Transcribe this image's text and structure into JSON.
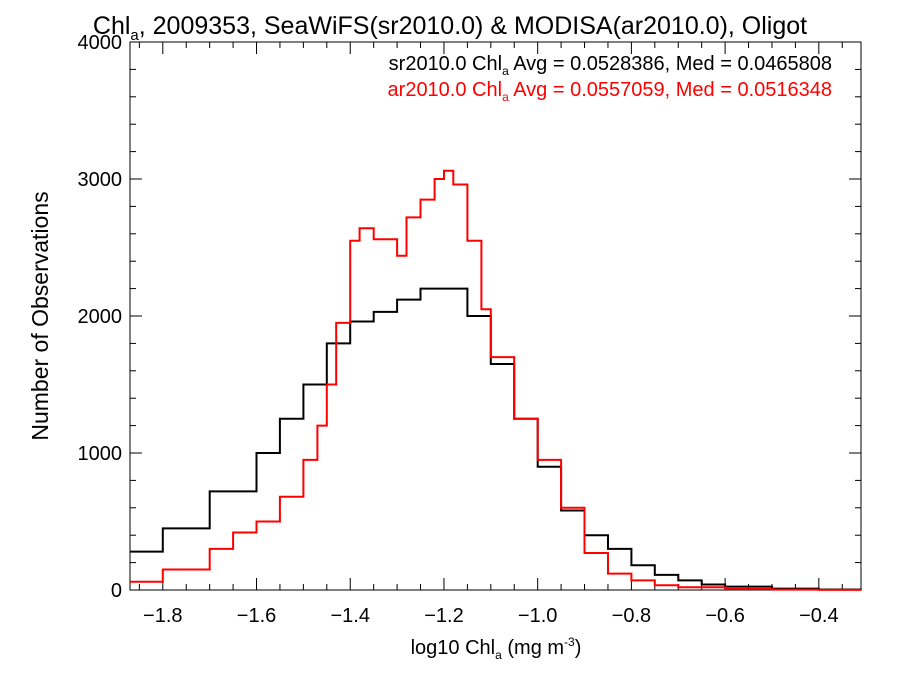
{
  "chart_data": {
    "type": "line",
    "title_main": "Chl",
    "title_sub": "a",
    "title_rest": ", 2009353, SeaWiFS(sr2010.0) & MODISA(ar2010.0), Oligot",
    "xlabel_main": "log10 Chl",
    "xlabel_sub": "a",
    "xlabel_units": " (mg m",
    "xlabel_sup": "-3",
    "xlabel_close": ")",
    "ylabel": "Number of Observations",
    "xlim": [
      -1.87,
      -0.31
    ],
    "ylim": [
      0,
      4000
    ],
    "x_ticks": [
      -1.8,
      -1.6,
      -1.4,
      -1.2,
      -1.0,
      -0.8,
      -0.6,
      -0.4
    ],
    "x_tick_labels": [
      "−1.8",
      "−1.6",
      "−1.4",
      "−1.2",
      "−1.0",
      "−0.8",
      "−0.6",
      "−0.4"
    ],
    "y_ticks": [
      0,
      1000,
      2000,
      3000,
      4000
    ],
    "y_tick_labels": [
      "0",
      "1000",
      "2000",
      "3000",
      "4000"
    ],
    "grid": false,
    "annotations": [
      {
        "prefix": "sr2010.0 Chl",
        "sub": "a",
        "suffix": " Avg = 0.0528386, Med = 0.0465808",
        "color": "#000000"
      },
      {
        "prefix": "ar2010.0 Chl",
        "sub": "a",
        "suffix": " Avg = 0.0557059, Med = 0.0516348",
        "color": "#ff0000"
      }
    ],
    "series": [
      {
        "color": "#000000",
        "x": [
          -1.87,
          -1.8,
          -1.7,
          -1.6,
          -1.55,
          -1.5,
          -1.45,
          -1.4,
          -1.35,
          -1.3,
          -1.25,
          -1.2,
          -1.15,
          -1.1,
          -1.05,
          -1.0,
          -0.95,
          -0.9,
          -0.85,
          -0.8,
          -0.75,
          -0.7,
          -0.65,
          -0.6,
          -0.5,
          -0.4,
          -0.31
        ],
        "y": [
          280,
          450,
          720,
          1000,
          1250,
          1500,
          1800,
          1960,
          2030,
          2120,
          2200,
          2200,
          2000,
          1650,
          1250,
          900,
          580,
          400,
          300,
          180,
          110,
          70,
          40,
          25,
          10,
          4,
          2
        ]
      },
      {
        "color": "#ff0000",
        "x": [
          -1.87,
          -1.8,
          -1.7,
          -1.65,
          -1.6,
          -1.55,
          -1.5,
          -1.47,
          -1.45,
          -1.43,
          -1.4,
          -1.38,
          -1.35,
          -1.32,
          -1.3,
          -1.28,
          -1.25,
          -1.22,
          -1.2,
          -1.18,
          -1.15,
          -1.12,
          -1.1,
          -1.05,
          -1.0,
          -0.95,
          -0.9,
          -0.85,
          -0.8,
          -0.75,
          -0.7,
          -0.6,
          -0.5,
          -0.4,
          -0.31
        ],
        "y": [
          60,
          150,
          300,
          420,
          500,
          680,
          950,
          1200,
          1500,
          1950,
          2550,
          2640,
          2560,
          2560,
          2440,
          2720,
          2850,
          3000,
          3060,
          2960,
          2550,
          2050,
          1700,
          1250,
          950,
          600,
          270,
          120,
          70,
          35,
          20,
          8,
          3,
          1,
          0
        ]
      }
    ]
  }
}
